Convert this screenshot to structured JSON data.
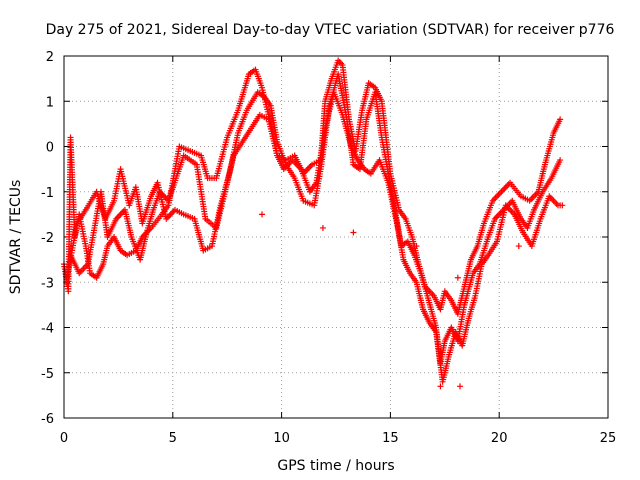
{
  "chart_data": {
    "type": "scatter",
    "title": "Day 275 of 2021, Sidereal Day-to-day VTEC variation (SDTVAR) for receiver p776",
    "xlabel": "GPS time / hours",
    "ylabel": "SDTVAR / TECUs",
    "xlim": [
      0,
      25
    ],
    "ylim": [
      -6,
      2
    ],
    "xticks": [
      0,
      5,
      10,
      15,
      20,
      25
    ],
    "yticks": [
      -6,
      -5,
      -4,
      -3,
      -2,
      -1,
      0,
      1,
      2
    ],
    "grid": true,
    "marker": "+",
    "series_color": "#ff0000",
    "series": [
      {
        "name": "SDTVAR",
        "trace_a": [
          [
            0.0,
            -2.6
          ],
          [
            0.2,
            -3.2
          ],
          [
            0.3,
            0.2
          ],
          [
            0.5,
            -2.0
          ],
          [
            0.7,
            -1.5
          ],
          [
            1.0,
            -2.2
          ],
          [
            1.2,
            -2.8
          ],
          [
            1.5,
            -2.9
          ],
          [
            1.8,
            -2.6
          ],
          [
            2.0,
            -2.2
          ],
          [
            2.3,
            -2.0
          ],
          [
            2.6,
            -2.3
          ],
          [
            2.9,
            -2.4
          ],
          [
            3.3,
            -2.3
          ],
          [
            3.6,
            -2.0
          ],
          [
            4.0,
            -1.8
          ],
          [
            4.5,
            -1.5
          ],
          [
            4.8,
            -1.3
          ],
          [
            5.3,
            0.0
          ],
          [
            5.8,
            -0.1
          ],
          [
            6.3,
            -0.2
          ],
          [
            6.6,
            -0.7
          ],
          [
            7.0,
            -0.7
          ],
          [
            7.5,
            0.2
          ],
          [
            8.0,
            0.8
          ],
          [
            8.5,
            1.6
          ],
          [
            8.8,
            1.7
          ],
          [
            9.1,
            1.3
          ],
          [
            9.5,
            0.5
          ],
          [
            9.8,
            -0.2
          ],
          [
            10.2,
            -0.3
          ],
          [
            10.6,
            -0.2
          ],
          [
            11.0,
            -0.6
          ],
          [
            11.4,
            -0.4
          ],
          [
            11.8,
            -0.3
          ],
          [
            12.0,
            1.0
          ],
          [
            12.3,
            1.5
          ],
          [
            12.6,
            1.9
          ],
          [
            12.8,
            1.8
          ],
          [
            13.1,
            0.6
          ],
          [
            13.4,
            -0.1
          ],
          [
            13.7,
            0.8
          ],
          [
            14.0,
            1.4
          ],
          [
            14.3,
            1.3
          ],
          [
            14.6,
            1.0
          ],
          [
            15.0,
            -0.6
          ],
          [
            15.4,
            -1.4
          ],
          [
            15.7,
            -1.6
          ],
          [
            16.0,
            -2.0
          ],
          [
            16.3,
            -2.6
          ],
          [
            16.6,
            -3.1
          ],
          [
            17.0,
            -3.3
          ],
          [
            17.3,
            -3.6
          ],
          [
            17.5,
            -3.2
          ],
          [
            17.8,
            -3.4
          ],
          [
            18.1,
            -3.7
          ],
          [
            18.4,
            -3.1
          ],
          [
            18.7,
            -2.5
          ],
          [
            19.0,
            -2.2
          ],
          [
            19.3,
            -1.7
          ],
          [
            19.7,
            -1.2
          ],
          [
            20.1,
            -1.0
          ],
          [
            20.5,
            -0.8
          ],
          [
            21.0,
            -1.1
          ],
          [
            21.4,
            -1.2
          ],
          [
            21.8,
            -1.0
          ],
          [
            22.1,
            -0.4
          ],
          [
            22.5,
            0.3
          ],
          [
            22.8,
            0.6
          ]
        ],
        "trace_b": [
          [
            0.1,
            -3.0
          ],
          [
            0.6,
            -1.7
          ],
          [
            1.0,
            -1.4
          ],
          [
            1.5,
            -1.0
          ],
          [
            1.9,
            -1.6
          ],
          [
            2.3,
            -1.2
          ],
          [
            2.6,
            -0.5
          ],
          [
            3.0,
            -1.3
          ],
          [
            3.3,
            -0.9
          ],
          [
            3.6,
            -1.7
          ],
          [
            4.0,
            -1.1
          ],
          [
            4.3,
            -0.8
          ],
          [
            4.7,
            -1.6
          ],
          [
            5.1,
            -1.4
          ],
          [
            5.5,
            -1.5
          ],
          [
            6.0,
            -1.6
          ],
          [
            6.4,
            -2.3
          ],
          [
            6.8,
            -2.2
          ],
          [
            7.2,
            -1.3
          ],
          [
            7.6,
            -0.6
          ],
          [
            8.0,
            0.3
          ],
          [
            8.4,
            0.8
          ],
          [
            8.9,
            1.2
          ],
          [
            9.2,
            1.1
          ],
          [
            9.5,
            0.9
          ],
          [
            9.8,
            0.1
          ],
          [
            10.2,
            -0.4
          ],
          [
            10.6,
            -0.7
          ],
          [
            11.0,
            -1.2
          ],
          [
            11.5,
            -1.3
          ],
          [
            11.8,
            -0.5
          ],
          [
            12.2,
            0.9
          ],
          [
            12.6,
            1.6
          ],
          [
            13.0,
            0.6
          ],
          [
            13.3,
            -0.4
          ],
          [
            13.6,
            -0.5
          ],
          [
            13.9,
            0.6
          ],
          [
            14.3,
            1.2
          ],
          [
            14.6,
            0.2
          ],
          [
            15.1,
            -1.1
          ],
          [
            15.5,
            -2.2
          ],
          [
            15.8,
            -2.1
          ],
          [
            16.1,
            -2.4
          ],
          [
            16.4,
            -2.8
          ],
          [
            16.7,
            -3.3
          ],
          [
            17.1,
            -4.0
          ],
          [
            17.3,
            -4.8
          ],
          [
            17.5,
            -4.3
          ],
          [
            17.8,
            -4.0
          ],
          [
            18.1,
            -4.3
          ],
          [
            18.4,
            -3.5
          ],
          [
            18.8,
            -2.8
          ],
          [
            19.1,
            -2.6
          ],
          [
            19.5,
            -2.0
          ],
          [
            19.8,
            -1.6
          ],
          [
            20.2,
            -1.4
          ],
          [
            20.6,
            -1.2
          ],
          [
            21.0,
            -1.6
          ],
          [
            21.3,
            -1.8
          ],
          [
            21.6,
            -1.4
          ],
          [
            22.0,
            -1.0
          ],
          [
            22.4,
            -0.7
          ],
          [
            22.8,
            -0.3
          ]
        ],
        "trace_c": [
          [
            0.3,
            -2.4
          ],
          [
            0.7,
            -2.8
          ],
          [
            1.1,
            -2.6
          ],
          [
            1.4,
            -1.8
          ],
          [
            1.7,
            -1.0
          ],
          [
            2.0,
            -2.0
          ],
          [
            2.4,
            -1.6
          ],
          [
            2.8,
            -1.4
          ],
          [
            3.1,
            -2.0
          ],
          [
            3.5,
            -2.5
          ],
          [
            3.8,
            -1.9
          ],
          [
            4.1,
            -1.4
          ],
          [
            4.4,
            -1.0
          ],
          [
            4.8,
            -1.2
          ],
          [
            5.5,
            -0.2
          ],
          [
            6.1,
            -0.4
          ],
          [
            6.5,
            -1.6
          ],
          [
            7.0,
            -1.8
          ],
          [
            7.4,
            -1.0
          ],
          [
            7.8,
            -0.2
          ],
          [
            8.2,
            0.1
          ],
          [
            8.6,
            0.4
          ],
          [
            9.0,
            0.7
          ],
          [
            9.4,
            0.6
          ],
          [
            9.8,
            -0.2
          ],
          [
            10.1,
            -0.5
          ],
          [
            10.5,
            -0.3
          ],
          [
            10.9,
            -0.5
          ],
          [
            11.3,
            -1.0
          ],
          [
            11.6,
            -0.8
          ],
          [
            12.0,
            0.4
          ],
          [
            12.4,
            1.2
          ],
          [
            12.8,
            0.7
          ],
          [
            13.2,
            0.0
          ],
          [
            13.5,
            -0.3
          ],
          [
            13.8,
            -0.5
          ],
          [
            14.1,
            -0.6
          ],
          [
            14.5,
            -0.3
          ],
          [
            14.9,
            -0.8
          ],
          [
            15.3,
            -1.7
          ],
          [
            15.6,
            -2.5
          ],
          [
            15.9,
            -2.8
          ],
          [
            16.2,
            -3.0
          ],
          [
            16.5,
            -3.6
          ],
          [
            16.8,
            -3.9
          ],
          [
            17.1,
            -4.1
          ],
          [
            17.4,
            -5.2
          ],
          [
            17.7,
            -4.6
          ],
          [
            18.0,
            -4.1
          ],
          [
            18.3,
            -4.4
          ],
          [
            18.6,
            -3.8
          ],
          [
            18.9,
            -3.3
          ],
          [
            19.2,
            -2.6
          ],
          [
            19.5,
            -2.4
          ],
          [
            19.9,
            -2.1
          ],
          [
            20.3,
            -1.3
          ],
          [
            20.7,
            -1.5
          ],
          [
            21.1,
            -1.9
          ],
          [
            21.5,
            -2.2
          ],
          [
            21.9,
            -1.6
          ],
          [
            22.3,
            -1.1
          ],
          [
            22.7,
            -1.3
          ],
          [
            22.9,
            -1.3
          ]
        ],
        "outliers": [
          [
            17.3,
            -5.3
          ],
          [
            18.2,
            -5.3
          ],
          [
            18.1,
            -2.9
          ],
          [
            9.1,
            -1.5
          ],
          [
            11.9,
            -1.8
          ],
          [
            16.2,
            -2.2
          ],
          [
            13.3,
            -1.9
          ],
          [
            20.9,
            -2.2
          ]
        ]
      }
    ]
  }
}
